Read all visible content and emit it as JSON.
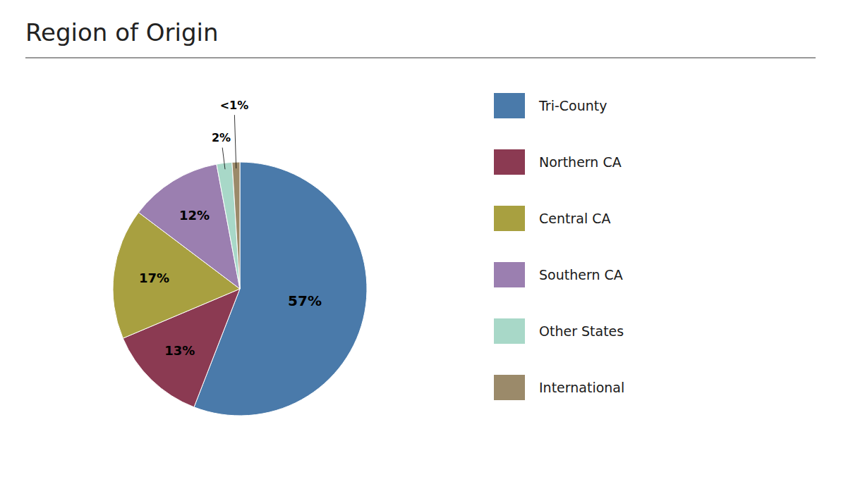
{
  "chart_data": {
    "type": "pie",
    "title": "Region of Origin",
    "categories": [
      "Tri-County",
      "Northern CA",
      "Central CA",
      "Southern CA",
      "Other States",
      "International"
    ],
    "values": [
      57,
      13,
      17,
      12,
      2,
      1
    ],
    "value_labels": [
      "57%",
      "13%",
      "17%",
      "12%",
      "2%",
      "<1%"
    ],
    "colors": [
      "#4a7aaa",
      "#8b3a52",
      "#a8a040",
      "#9b7fb0",
      "#a8d8c8",
      "#9b8a6a"
    ],
    "data_labels": true,
    "legend": "right"
  }
}
